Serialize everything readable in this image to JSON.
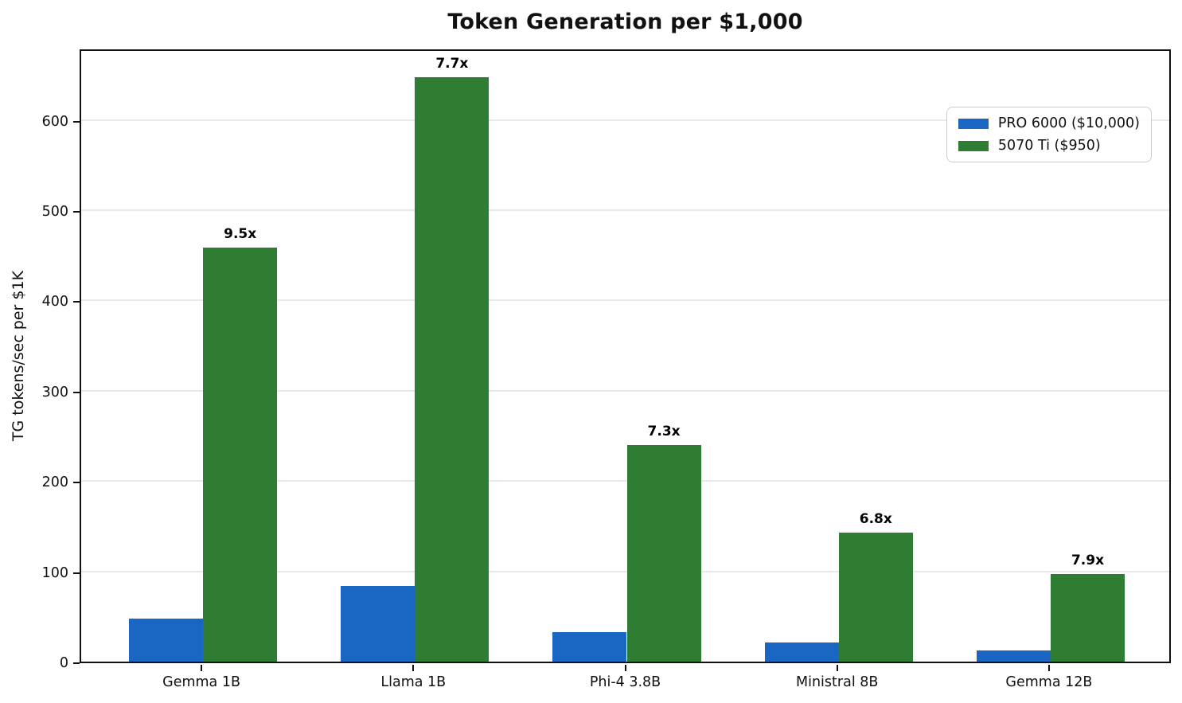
{
  "chart_data": {
    "type": "bar",
    "title": "Token Generation per $1,000",
    "xlabel": "",
    "ylabel": "TG tokens/sec per $1K",
    "categories": [
      "Gemma 1B",
      "Llama 1B",
      "Phi-4 3.8B",
      "Ministral 8B",
      "Gemma 12B"
    ],
    "series": [
      {
        "name": "PRO 6000 ($10,000)",
        "color": "#1a66c3",
        "values": [
          48,
          84,
          33,
          21,
          12
        ]
      },
      {
        "name": "5070 Ti ($950)",
        "color": "#2e7d32",
        "values": [
          459,
          647,
          240,
          143,
          97
        ]
      }
    ],
    "annotations": [
      "9.5x",
      "7.7x",
      "7.3x",
      "6.8x",
      "7.9x"
    ],
    "ylim": [
      0,
      680
    ],
    "yticks": [
      0,
      100,
      200,
      300,
      400,
      500,
      600
    ],
    "grid": "horizontal",
    "gridline_color": "#e9e9e9",
    "legend_position": "upper right",
    "annotation_suffix": "x"
  }
}
